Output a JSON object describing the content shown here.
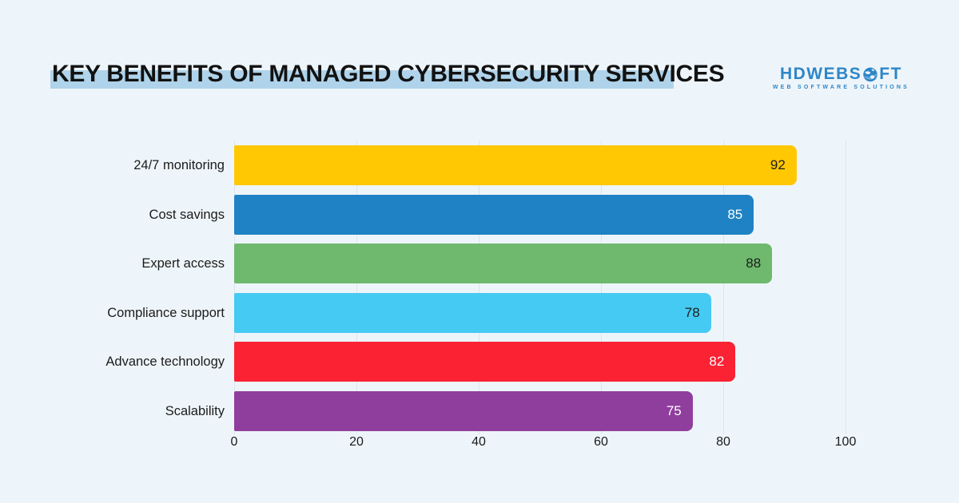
{
  "page": {
    "background_color": "#EEF5FA"
  },
  "header": {
    "title": "KEY BENEFITS OF MANAGED CYBERSECURITY SERVICES",
    "highlight_color": "#AFD3EA"
  },
  "logo": {
    "name": "HDWEBSOFT",
    "text_before_globe": "HDWEBS",
    "text_after_globe": "FT",
    "tagline": "WEB SOFTWARE SOLUTIONS",
    "color": "#2E86C7"
  },
  "chart_data": {
    "type": "bar",
    "orientation": "horizontal",
    "title": "KEY BENEFITS OF MANAGED CYBERSECURITY SERVICES",
    "categories": [
      "24/7 monitoring",
      "Cost savings",
      "Expert access",
      "Compliance support",
      "Advance technology",
      "Scalability"
    ],
    "values": [
      92,
      85,
      88,
      78,
      82,
      75
    ],
    "bar_colors": [
      "#FFC802",
      "#1F82C4",
      "#6EB96D",
      "#45CAF3",
      "#FA2233",
      "#8F3E9D"
    ],
    "value_label_colors": [
      "#1E1E1E",
      "#FFFFFF",
      "#1E1E1E",
      "#1E1E1E",
      "#FFFFFF",
      "#FFFFFF"
    ],
    "x_ticks": [
      0,
      20,
      40,
      60,
      80,
      100
    ],
    "xlim": [
      0,
      100
    ],
    "xlabel": "",
    "ylabel": "",
    "grid": true,
    "gridline_color": "#DCE4EC",
    "legend": false
  }
}
